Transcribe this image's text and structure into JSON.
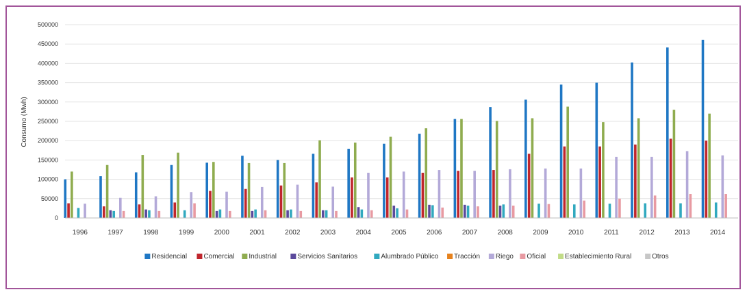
{
  "chart_data": {
    "type": "bar",
    "title": "",
    "ylabel": "Consumo (Mwh)",
    "xlabel": "",
    "ylim": [
      0,
      500000
    ],
    "yticks": [
      0,
      50000,
      100000,
      150000,
      200000,
      250000,
      300000,
      350000,
      400000,
      450000,
      500000
    ],
    "grid": true,
    "legend_position": "bottom",
    "categories": [
      "1996",
      "1997",
      "1998",
      "1999",
      "2000",
      "2001",
      "2002",
      "2003",
      "2004",
      "2005",
      "2006",
      "2007",
      "2008",
      "2009",
      "2010",
      "2011",
      "2012",
      "2013",
      "2014"
    ],
    "series": [
      {
        "name": "Residencial",
        "color": "#1f77c4",
        "values": [
          100000,
          108000,
          118000,
          137000,
          143000,
          161000,
          150000,
          166000,
          179000,
          192000,
          218000,
          256000,
          287000,
          306000,
          345000,
          350000,
          402000,
          441000,
          461000
        ]
      },
      {
        "name": "Comercial",
        "color": "#c0262d",
        "values": [
          38000,
          30000,
          35000,
          40000,
          70000,
          75000,
          84000,
          92000,
          105000,
          105000,
          117000,
          122000,
          124000,
          166000,
          185000,
          185000,
          190000,
          205000,
          200000
        ]
      },
      {
        "name": "Industrial",
        "color": "#8fac4f",
        "values": [
          120000,
          137000,
          163000,
          169000,
          145000,
          142000,
          142000,
          201000,
          195000,
          210000,
          232000,
          256000,
          251000,
          258000,
          288000,
          248000,
          258000,
          280000,
          270000
        ]
      },
      {
        "name": "Servicios Sanitarios",
        "color": "#5b4a9c",
        "values": [
          0,
          20000,
          22000,
          0,
          18000,
          18000,
          20000,
          20000,
          28000,
          32000,
          34000,
          34000,
          32000,
          0,
          0,
          0,
          0,
          0,
          0
        ]
      },
      {
        "name": "Alumbrado Público",
        "color": "#31a9bf",
        "values": [
          26000,
          18000,
          20000,
          20000,
          22000,
          22000,
          22000,
          20000,
          22000,
          25000,
          33000,
          32000,
          35000,
          37000,
          35000,
          37000,
          38000,
          38000,
          40000
        ]
      },
      {
        "name": "Tracción",
        "color": "#e6821e",
        "values": [
          0,
          0,
          0,
          0,
          0,
          0,
          0,
          0,
          0,
          0,
          0,
          0,
          0,
          0,
          0,
          0,
          0,
          0,
          0
        ]
      },
      {
        "name": "Riego",
        "color": "#b3a9d8",
        "values": [
          37000,
          52000,
          56000,
          67000,
          68000,
          80000,
          86000,
          81000,
          117000,
          120000,
          124000,
          122000,
          126000,
          128000,
          128000,
          158000,
          158000,
          173000,
          162000
        ]
      },
      {
        "name": "Oficial",
        "color": "#e89aa2",
        "values": [
          0,
          18000,
          18000,
          38000,
          18000,
          20000,
          18000,
          18000,
          20000,
          22000,
          27000,
          30000,
          32000,
          36000,
          45000,
          50000,
          58000,
          62000,
          62000
        ]
      },
      {
        "name": "Establecimiento Rural",
        "color": "#c2dc88",
        "values": [
          0,
          0,
          0,
          0,
          0,
          0,
          0,
          0,
          0,
          0,
          0,
          0,
          0,
          0,
          0,
          0,
          0,
          0,
          0
        ]
      },
      {
        "name": "Otros",
        "color": "#c7c7c7",
        "values": [
          0,
          0,
          0,
          0,
          0,
          0,
          0,
          0,
          0,
          0,
          0,
          0,
          0,
          0,
          0,
          0,
          0,
          0,
          0
        ]
      }
    ]
  }
}
